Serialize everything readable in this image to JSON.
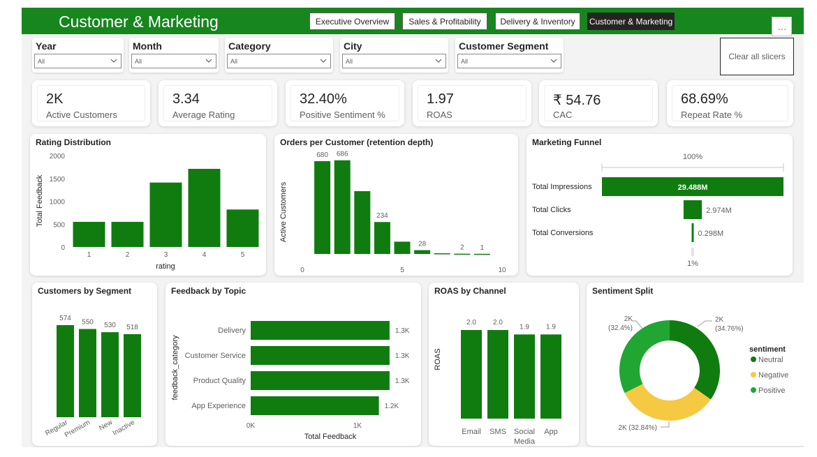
{
  "header": {
    "title": "Customer & Marketing",
    "nav": [
      "Executive Overview",
      "Sales & Profitability",
      "Delivery & Inventory",
      "Customer & Marketing"
    ],
    "active_nav": "Customer & Marketing",
    "more_glyph": "…",
    "more_icon": "more-options-icon"
  },
  "slicers": [
    {
      "title": "Year",
      "value": "All"
    },
    {
      "title": "Month",
      "value": "All"
    },
    {
      "title": "Category",
      "value": "All"
    },
    {
      "title": "City",
      "value": "All"
    },
    {
      "title": "Customer Segment",
      "value": "All"
    }
  ],
  "clear_button": "Clear all slicers",
  "kpis": [
    {
      "value": "2K",
      "label": "Active Customers"
    },
    {
      "value": "3.34",
      "label": "Average Rating"
    },
    {
      "value": "32.40%",
      "label": "Positive Sentiment %"
    },
    {
      "value": "1.97",
      "label": "ROAS"
    },
    {
      "value": "₹ 54.76",
      "label": "CAC"
    },
    {
      "value": "68.69%",
      "label": "Repeat Rate %"
    }
  ],
  "colors": {
    "brand": "#17861f",
    "bar": "#107c10",
    "neutral": "#107c10",
    "negative": "#f6c942",
    "positive": "#21a634"
  },
  "chart_data": [
    {
      "type": "bar",
      "title": "Rating Distribution",
      "xlabel": "rating",
      "ylabel": "Total Feedback",
      "categories": [
        "1",
        "2",
        "3",
        "4",
        "5"
      ],
      "values": [
        550,
        550,
        1410,
        1710,
        820
      ],
      "yticks": [
        "0",
        "500",
        "1000",
        "1500",
        "2000"
      ],
      "ylim": [
        0,
        2000
      ]
    },
    {
      "type": "bar",
      "title": "Orders per Customer (retention depth)",
      "ylabel": "Active Customers",
      "x": [
        1,
        2,
        3,
        4,
        5,
        6,
        7,
        8,
        9
      ],
      "values": [
        680,
        686,
        460,
        234,
        90,
        28,
        5,
        2,
        1
      ],
      "labels": [
        "680",
        "686",
        "",
        "234",
        "",
        "28",
        "",
        "2",
        "1"
      ],
      "xticks": [
        "0",
        "5",
        "10"
      ],
      "xlim": [
        0,
        10
      ]
    },
    {
      "type": "bar",
      "title": "Marketing Funnel",
      "orientation": "funnel",
      "categories": [
        "Total Impressions",
        "Total Clicks",
        "Total Conversions"
      ],
      "values": [
        29.488,
        2.974,
        0.298
      ],
      "labels": [
        "29.488M",
        "2.974M",
        "0.298M"
      ],
      "top_label": "100%",
      "bottom_label": "1%"
    },
    {
      "type": "bar",
      "title": "Customers by Segment",
      "categories": [
        "Regular",
        "Premium",
        "New",
        "Inactive"
      ],
      "values": [
        574,
        550,
        530,
        518
      ],
      "labels": [
        "574",
        "550",
        "530",
        "518"
      ]
    },
    {
      "type": "bar",
      "title": "Feedback by Topic",
      "orientation": "horizontal",
      "xlabel": "Total Feedback",
      "ylabel": "feedback_category",
      "categories": [
        "Delivery",
        "Customer Service",
        "Product Quality",
        "App Experience"
      ],
      "values": [
        1.3,
        1.3,
        1.3,
        1.2
      ],
      "labels": [
        "1.3K",
        "1.3K",
        "1.3K",
        "1.2K"
      ],
      "xticks": [
        "0K",
        "1K"
      ]
    },
    {
      "type": "bar",
      "title": "ROAS by Channel",
      "ylabel": "ROAS",
      "categories": [
        "Email",
        "SMS",
        "Social Media",
        "App"
      ],
      "values": [
        2.0,
        2.0,
        1.9,
        1.9
      ],
      "labels": [
        "2.0",
        "2.0",
        "1.9",
        "1.9"
      ]
    },
    {
      "type": "pie",
      "title": "Sentiment Split",
      "legend_title": "sentiment",
      "legend": [
        "Neutral",
        "Negative",
        "Positive"
      ],
      "series": [
        {
          "name": "Neutral",
          "value": 34.76,
          "label": "2K",
          "pct": "(34.76%)"
        },
        {
          "name": "Negative",
          "value": 32.84,
          "label": "2K (32.84%)"
        },
        {
          "name": "Positive",
          "value": 32.4,
          "label": "2K",
          "pct": "(32.4%)"
        }
      ]
    }
  ]
}
